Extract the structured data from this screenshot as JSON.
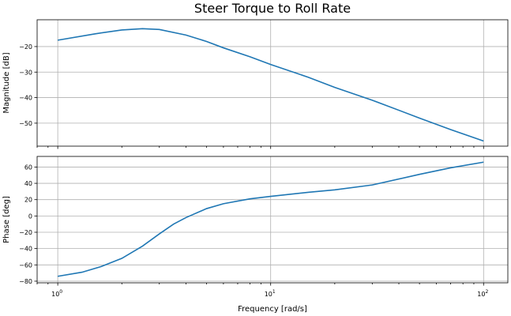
{
  "chart_data": {
    "type": "line",
    "title": "Steer Torque to Roll Rate",
    "xlabel": "Frequency [rad/s]",
    "x_scale": "log",
    "xlim": [
      0.8,
      130
    ],
    "x_ticks": [
      1,
      10,
      100
    ],
    "x_tick_labels": [
      {
        "base": "10",
        "exp": "0"
      },
      {
        "base": "10",
        "exp": "1"
      },
      {
        "base": "10",
        "exp": "2"
      }
    ],
    "grid": true,
    "colors": {
      "line": "#1f77b4",
      "grid": "#b0b0b0"
    },
    "panels": [
      {
        "id": "magnitude",
        "ylabel": "Magnitude [dB]",
        "ylim": [
          -59,
          -9.5
        ],
        "y_ticks": [
          -20,
          -30,
          -40,
          -50
        ],
        "y_tick_labels": [
          "−20",
          "−30",
          "−40",
          "−50"
        ],
        "x": [
          1,
          1.5,
          2,
          2.5,
          3,
          4,
          5,
          6,
          8,
          10,
          15,
          20,
          30,
          50,
          70,
          100
        ],
        "y": [
          -17.5,
          -15.0,
          -13.5,
          -13.0,
          -13.3,
          -15.5,
          -18.0,
          -20.5,
          -24.0,
          -27.0,
          -32.0,
          -36.0,
          -41.0,
          -48.0,
          -52.5,
          -57.0
        ]
      },
      {
        "id": "phase",
        "ylabel": "Phase [deg]",
        "ylim": [
          -82,
          73
        ],
        "y_ticks": [
          60,
          40,
          20,
          0,
          -20,
          -40,
          -60,
          -80
        ],
        "y_tick_labels": [
          "60",
          "40",
          "20",
          "0",
          "−20",
          "−40",
          "−60",
          "−80"
        ],
        "x": [
          1,
          1.3,
          1.6,
          2,
          2.5,
          3,
          3.5,
          4,
          5,
          6,
          8,
          10,
          15,
          20,
          30,
          50,
          70,
          100
        ],
        "y": [
          -74,
          -69,
          -62,
          -52,
          -37,
          -22,
          -10,
          -2,
          9,
          15,
          21,
          24,
          29,
          32,
          38,
          51,
          59,
          66
        ]
      }
    ]
  }
}
